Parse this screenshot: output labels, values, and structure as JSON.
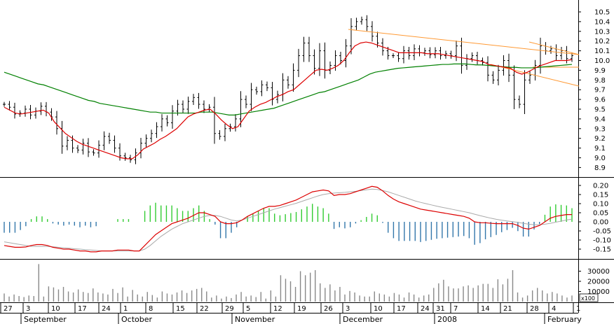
{
  "chart_data": [
    {
      "type": "bar",
      "panel": "price",
      "title": "",
      "yticks": [
        "10.5",
        "10.4",
        "10.3",
        "10.2",
        "10.1",
        "10.0",
        "9.9",
        "9.8",
        "9.7",
        "9.6",
        "9.5",
        "9.4",
        "9.3",
        "9.2",
        "9.1",
        "9.0",
        "8.9"
      ],
      "ylim": [
        8.85,
        10.6
      ],
      "grid": false,
      "colors": {
        "ma_short": "#dd0000",
        "ma_long": "#008000",
        "trendline": "#ff9933",
        "bars": "#000000"
      },
      "close": [
        9.55,
        9.52,
        9.45,
        9.46,
        9.5,
        9.44,
        9.48,
        9.53,
        9.47,
        9.42,
        9.3,
        9.12,
        9.18,
        9.1,
        9.08,
        9.15,
        9.06,
        9.05,
        9.13,
        9.22,
        9.18,
        9.1,
        9.02,
        9.0,
        8.98,
        9.05,
        9.15,
        9.2,
        9.25,
        9.32,
        9.4,
        9.36,
        9.48,
        9.55,
        9.5,
        9.58,
        9.62,
        9.55,
        9.5,
        9.52,
        9.25,
        9.22,
        9.3,
        9.32,
        9.4,
        9.6,
        9.55,
        9.7,
        9.68,
        9.75,
        9.72,
        9.6,
        9.65,
        9.8,
        9.75,
        9.9,
        10.05,
        10.18,
        10.05,
        9.92,
        10.1,
        9.9,
        9.95,
        10.05,
        10.0,
        10.15,
        10.35,
        10.4,
        10.42,
        10.35,
        10.25,
        10.18,
        10.1,
        10.05,
        10.05,
        10.02,
        10.1,
        10.05,
        10.12,
        10.08,
        10.1,
        10.06,
        10.1,
        10.05,
        10.07,
        10.05,
        10.15,
        9.95,
        10.02,
        10.05,
        10.0,
        9.98,
        9.85,
        9.8,
        9.9,
        10.0,
        9.85,
        9.6,
        9.55,
        9.8,
        9.85,
        9.95,
        10.15,
        10.1,
        10.12,
        10.05,
        10.1,
        10.02,
        10.05
      ],
      "ma_short": [
        9.52,
        9.49,
        9.46,
        9.45,
        9.46,
        9.47,
        9.48,
        9.49,
        9.46,
        9.37,
        9.31,
        9.25,
        9.21,
        9.17,
        9.14,
        9.12,
        9.1,
        9.08,
        9.06,
        9.04,
        9.02,
        9.0,
        8.99,
        8.99,
        9.03,
        9.09,
        9.12,
        9.15,
        9.19,
        9.22,
        9.26,
        9.3,
        9.36,
        9.42,
        9.45,
        9.47,
        9.49,
        9.5,
        9.45,
        9.39,
        9.34,
        9.3,
        9.32,
        9.4,
        9.48,
        9.52,
        9.55,
        9.57,
        9.6,
        9.63,
        9.65,
        9.68,
        9.7,
        9.75,
        9.8,
        9.85,
        9.9,
        9.91,
        9.9,
        9.92,
        9.95,
        10.0,
        10.08,
        10.15,
        10.18,
        10.19,
        10.18,
        10.16,
        10.14,
        10.12,
        10.1,
        10.08,
        10.08,
        10.08,
        10.08,
        10.08,
        10.07,
        10.07,
        10.07,
        10.06,
        10.05,
        10.04,
        10.03,
        10.02,
        10.01,
        10.0,
        9.99,
        9.96,
        9.95,
        9.94,
        9.93,
        9.92,
        9.88,
        9.86,
        9.88,
        9.91,
        9.94,
        9.96,
        9.98,
        10.0,
        10.0,
        10.0,
        10.01
      ]
    },
    {
      "type": "bar",
      "panel": "macd",
      "yticks": [
        "0.20",
        "0.15",
        "0.10",
        "0.05",
        "0.00",
        "-0.05",
        "-0.10",
        "-0.15"
      ],
      "ylim": [
        -0.18,
        0.22
      ],
      "colors": {
        "macd": "#dd0000",
        "signal": "#aaaaaa",
        "hist_up": "#33cc33",
        "hist_down": "#3377aa"
      },
      "macd": [
        -0.13,
        -0.135,
        -0.14,
        -0.14,
        -0.138,
        -0.13,
        -0.125,
        -0.125,
        -0.13,
        -0.14,
        -0.145,
        -0.15,
        -0.15,
        -0.155,
        -0.16,
        -0.16,
        -0.165,
        -0.165,
        -0.16,
        -0.16,
        -0.16,
        -0.155,
        -0.155,
        -0.155,
        -0.16,
        -0.16,
        -0.13,
        -0.1,
        -0.07,
        -0.05,
        -0.03,
        -0.01,
        0.0,
        0.01,
        0.02,
        0.035,
        0.05,
        0.05,
        0.04,
        0.03,
        0.0,
        -0.01,
        -0.01,
        -0.005,
        0.01,
        0.03,
        0.045,
        0.06,
        0.075,
        0.085,
        0.085,
        0.09,
        0.1,
        0.11,
        0.12,
        0.135,
        0.15,
        0.165,
        0.17,
        0.175,
        0.17,
        0.145,
        0.15,
        0.15,
        0.155,
        0.165,
        0.175,
        0.185,
        0.195,
        0.19,
        0.17,
        0.145,
        0.125,
        0.11,
        0.1,
        0.09,
        0.08,
        0.07,
        0.065,
        0.06,
        0.055,
        0.05,
        0.045,
        0.04,
        0.035,
        0.03,
        0.02,
        0.0,
        -0.005,
        -0.005,
        -0.008,
        -0.01,
        -0.01,
        -0.01,
        -0.01,
        -0.02,
        -0.035,
        -0.04,
        -0.03,
        -0.02,
        0.0,
        0.02,
        0.03,
        0.035,
        0.04,
        0.04
      ],
      "signal": [
        -0.11,
        -0.115,
        -0.12,
        -0.125,
        -0.13,
        -0.135,
        -0.135,
        -0.135,
        -0.135,
        -0.137,
        -0.14,
        -0.143,
        -0.145,
        -0.148,
        -0.15,
        -0.153,
        -0.155,
        -0.157,
        -0.16,
        -0.16,
        -0.16,
        -0.16,
        -0.16,
        -0.16,
        -0.16,
        -0.16,
        -0.15,
        -0.13,
        -0.105,
        -0.08,
        -0.06,
        -0.04,
        -0.025,
        -0.01,
        0.0,
        0.01,
        0.02,
        0.03,
        0.035,
        0.035,
        0.03,
        0.02,
        0.01,
        0.005,
        0.01,
        0.02,
        0.03,
        0.04,
        0.05,
        0.06,
        0.07,
        0.078,
        0.086,
        0.094,
        0.102,
        0.112,
        0.122,
        0.132,
        0.142,
        0.15,
        0.155,
        0.158,
        0.16,
        0.162,
        0.165,
        0.168,
        0.172,
        0.176,
        0.18,
        0.178,
        0.172,
        0.165,
        0.155,
        0.145,
        0.135,
        0.125,
        0.115,
        0.107,
        0.1,
        0.093,
        0.086,
        0.08,
        0.074,
        0.068,
        0.062,
        0.056,
        0.05,
        0.042,
        0.034,
        0.027,
        0.02,
        0.014,
        0.009,
        0.005,
        0.001,
        -0.003,
        -0.008,
        -0.013,
        -0.016,
        -0.016,
        -0.013,
        -0.008,
        -0.002,
        0.004,
        0.01,
        0.015
      ]
    },
    {
      "type": "bar",
      "panel": "volume",
      "yticks": [
        "30000",
        "20000",
        "10000"
      ],
      "unit": "x100",
      "ylim": [
        0,
        38000
      ],
      "colors": {
        "bars": "#888888",
        "spike": "#888888"
      },
      "values": [
        8000,
        5000,
        7000,
        5500,
        4500,
        6000,
        5500,
        37000,
        5000,
        15000,
        14000,
        12000,
        14500,
        10000,
        9000,
        12000,
        9500,
        8500,
        13000,
        9000,
        8000,
        7000,
        12500,
        8500,
        14000,
        5000,
        11500,
        7000,
        5000,
        9500,
        6500,
        4000,
        10000,
        8000,
        7000,
        9000,
        11000,
        8500,
        11000,
        12500,
        13500,
        10000,
        4000,
        6000,
        3000,
        5000,
        3500,
        7000,
        9500,
        5000,
        6000,
        4500,
        9500,
        3000,
        11000,
        5000,
        26000,
        22500,
        20000,
        14500,
        30000,
        26000,
        28500,
        31000,
        18000,
        13500,
        17000,
        11000,
        14500,
        7000,
        10500,
        9000,
        6000,
        5000,
        5000,
        10000,
        8000,
        7000,
        5000,
        8500,
        7000,
        4000,
        9000,
        7000,
        4000,
        6000,
        7000,
        13500,
        18000,
        21500,
        15000,
        13000,
        13000,
        15000,
        16000,
        13500,
        16000,
        17500,
        17500,
        13500,
        22000,
        17000,
        22500,
        31000,
        9000,
        4000,
        6000,
        11000,
        13500,
        11000,
        8000,
        9500,
        8000,
        6000,
        4000,
        6000
      ]
    }
  ],
  "x_axis": {
    "day_labels": [
      "27",
      "3",
      "10",
      "17",
      "24",
      "1",
      "8",
      "15",
      "22",
      "29",
      "5",
      "12",
      "19",
      "26",
      "3",
      "10",
      "17",
      "24",
      "31",
      "7",
      "14",
      "21",
      "28",
      "4",
      "1"
    ],
    "month_labels": [
      "September",
      "October",
      "November",
      "December",
      "2008",
      "February"
    ]
  }
}
